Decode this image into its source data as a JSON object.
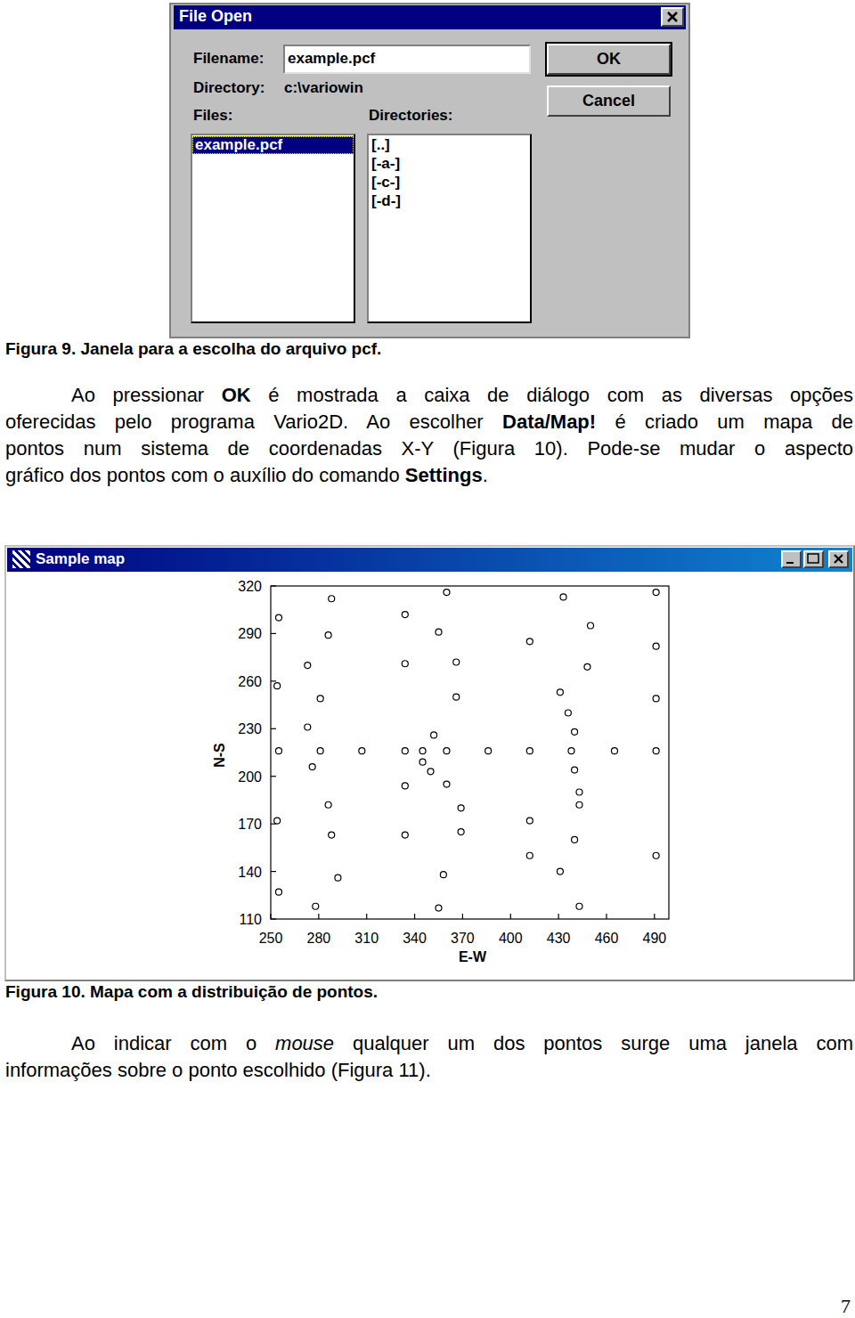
{
  "dialog": {
    "title": "File Open",
    "filename_label": "Filename:",
    "filename": "example.pcf",
    "directory_label": "Directory:",
    "directory": "c:\\variowin",
    "files_label": "Files:",
    "files": [
      "example.pcf"
    ],
    "directories_label": "Directories:",
    "directories": [
      "[..]",
      "[-a-]",
      "[-c-]",
      "[-d-]"
    ],
    "ok_button": "OK",
    "cancel_button": "Cancel"
  },
  "figure9_caption": "Figura 9. Janela para a escolha do arquivo pcf.",
  "paragraph1": [
    [
      {
        "text": "Ao pressionar "
      },
      {
        "text": "OK",
        "bold": true
      },
      {
        "text": " é mostrada a caixa de diálogo com as diversas opções"
      }
    ],
    [
      {
        "text": "oferecidas pelo programa Vario2D. Ao escolher "
      },
      {
        "text": "Data/Map!",
        "bold": true
      },
      {
        "text": " é criado um mapa de"
      }
    ],
    [
      {
        "text": "pontos num sistema de coordenadas X-Y (Figura 10). Pode-se mudar o aspecto"
      }
    ],
    [
      {
        "text": "gráfico dos pontos com o auxílio do comando "
      },
      {
        "text": "Settings",
        "bold": true
      },
      {
        "text": "."
      }
    ]
  ],
  "window": {
    "title": "Sample map"
  },
  "chart_data": {
    "type": "scatter",
    "x_label": "E-W",
    "y_label": "N-S",
    "color": "#000000",
    "marker": "circle",
    "x": [
      255,
      288,
      286,
      273,
      254,
      281,
      273,
      255,
      281,
      276,
      286,
      254,
      288,
      292,
      255,
      278,
      307,
      334,
      334,
      334,
      334,
      334,
      360,
      355,
      366,
      366,
      352,
      345,
      360,
      345,
      350,
      360,
      369,
      369,
      358,
      355,
      386,
      412,
      412,
      412,
      412,
      433,
      450,
      448,
      431,
      436,
      440,
      438,
      440,
      443,
      443,
      440,
      431,
      443,
      465,
      491,
      491,
      491,
      491,
      491
    ],
    "values": [
      300,
      312,
      289,
      270,
      257,
      249,
      231,
      216,
      216,
      206,
      182,
      172,
      163,
      136,
      127,
      118,
      216,
      302,
      271,
      216,
      194,
      163,
      316,
      291,
      272,
      250,
      226,
      216,
      216,
      209,
      203,
      195,
      180,
      165,
      138,
      117,
      216,
      285,
      216,
      172,
      150,
      313,
      295,
      269,
      253,
      240,
      228,
      216,
      204,
      190,
      182,
      160,
      140,
      118,
      216,
      316,
      282,
      249,
      216,
      150
    ],
    "xlim": [
      250,
      499
    ],
    "ylim": [
      110,
      320
    ],
    "xticks": [
      250,
      280,
      310,
      340,
      370,
      400,
      430,
      460,
      490
    ],
    "yticks": [
      110,
      140,
      170,
      200,
      230,
      260,
      290,
      320
    ]
  },
  "figure10_caption": "Figura 10. Mapa com a distribuição de pontos.",
  "paragraph2": [
    [
      {
        "text": "Ao indicar com o "
      },
      {
        "text": "mouse",
        "italic": true
      },
      {
        "text": " qualquer um dos pontos surge uma janela com"
      }
    ],
    [
      {
        "text": "informações sobre o ponto escolhido (Figura 11)."
      }
    ]
  ],
  "page_number": "7"
}
